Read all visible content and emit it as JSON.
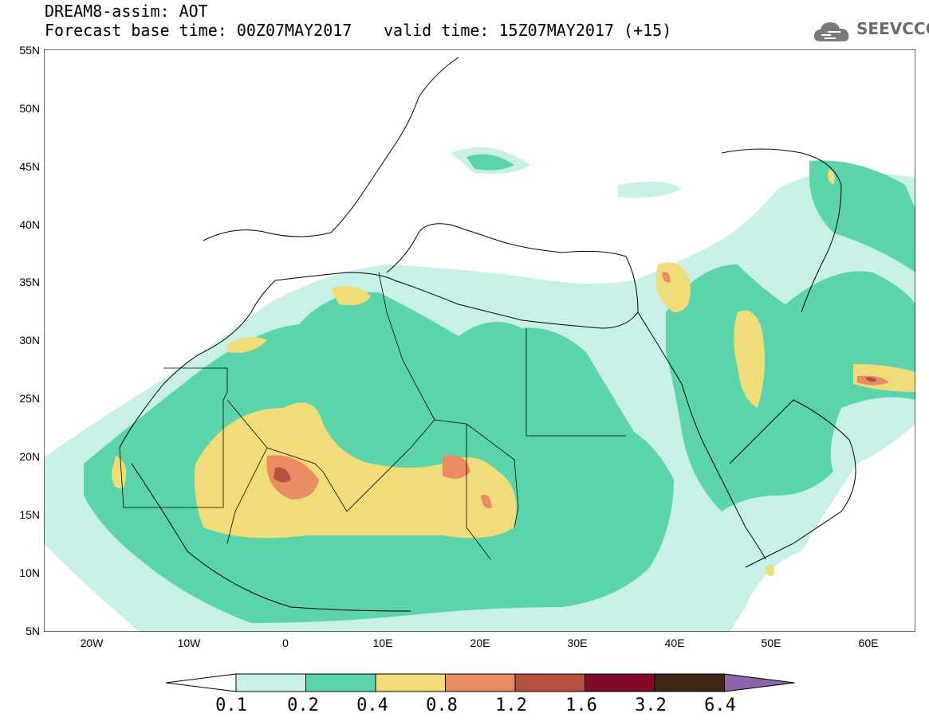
{
  "header": {
    "title_line1": "DREAM8-assim: AOT",
    "title_line2": "Forecast base time: 00Z07MAY2017",
    "valid_time": "valid time: 15Z07MAY2017 (+15)",
    "logo_text": "SEEVCCC"
  },
  "axes": {
    "y_ticks": [
      "55N",
      "50N",
      "45N",
      "40N",
      "35N",
      "30N",
      "25N",
      "20N",
      "15N",
      "10N",
      "5N"
    ],
    "x_ticks": [
      "20W",
      "10W",
      "0",
      "10E",
      "20E",
      "30E",
      "40E",
      "50E",
      "60E"
    ]
  },
  "legend": {
    "labels": [
      "0.1",
      "0.2",
      "0.4",
      "0.8",
      "1.2",
      "1.6",
      "3.2",
      "6.4"
    ],
    "colors": [
      "#ffffff",
      "#c8f0e6",
      "#5ad4a8",
      "#f0dc78",
      "#e88c64",
      "#b4503c",
      "#820a28",
      "#3c2814",
      "#8c64aa"
    ]
  }
}
